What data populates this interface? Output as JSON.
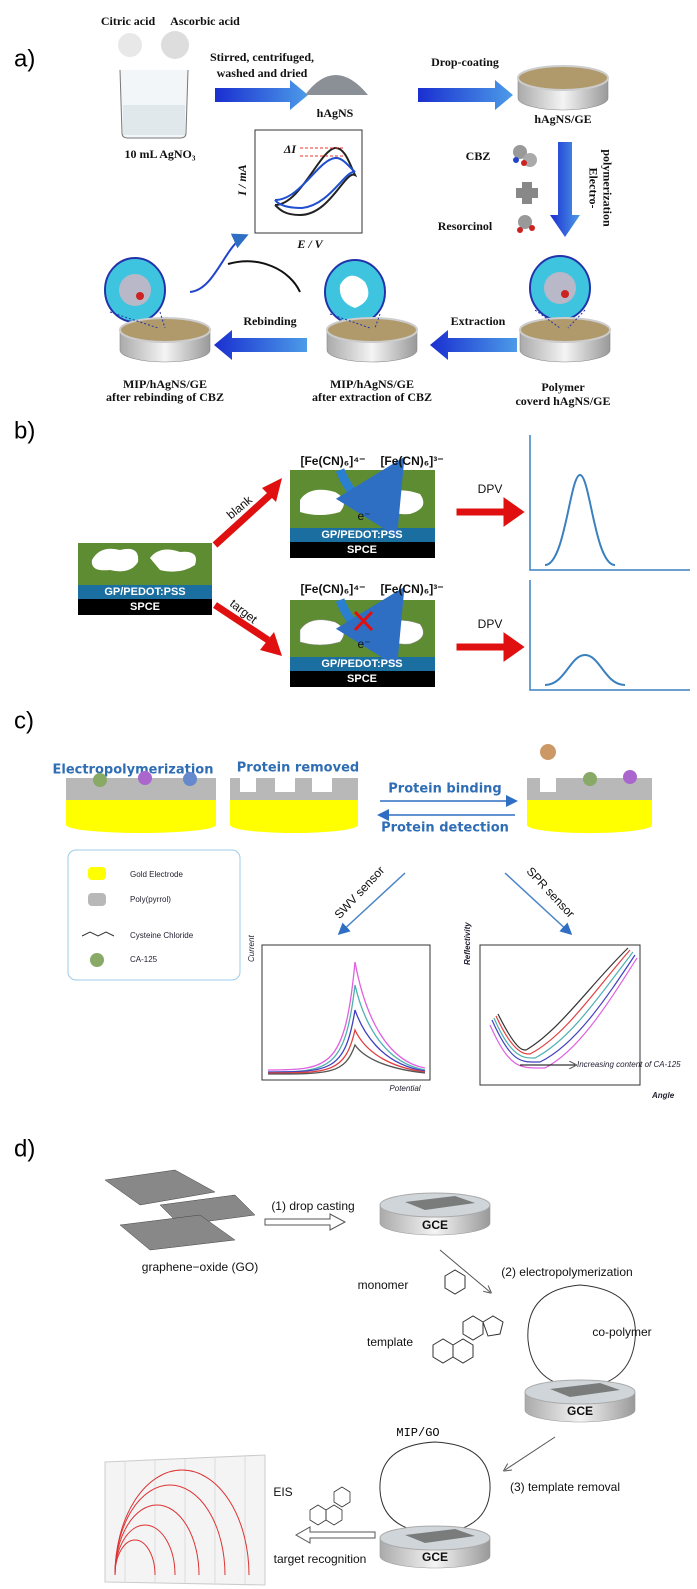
{
  "panel_a": {
    "label": "a)",
    "citric_acid": "Citric acid",
    "ascorbic_acid": "Ascorbic acid",
    "beaker": "10 mL  AgNO₃",
    "step1_line1": "Stirred, centrifuged,",
    "step1_line2": "washed and dried",
    "hagns": "hAgNS",
    "drop_coating": "Drop-coating",
    "hagns_ge": "hAgNS/GE",
    "cbz": "CBZ",
    "resorcinol": "Resorcinol",
    "electro_line1": "Electro-",
    "electro_line2": "polymerization",
    "delta_i": "ΔI",
    "y_axis": "I / mA",
    "x_axis": "E / V",
    "extraction": "Extraction",
    "rebinding": "Rebinding",
    "polymer_line1": "Polymer",
    "polymer_line2": "coverd hAgNS/GE",
    "extracted_line1": "MIP/hAgNS/GE",
    "extracted_line2": "after extraction of CBZ",
    "rebound_line1": "MIP/hAgNS/GE",
    "rebound_line2": "after rebinding of CBZ"
  },
  "panel_b": {
    "label": "b)",
    "blank": "blank",
    "target": "target",
    "ferro": "[Fe(CN)₆]⁴⁻",
    "ferri": "[Fe(CN)₆]³⁻",
    "electron": "e⁻",
    "layer": "GP/PEDOT:PSS",
    "substrate": "SPCE",
    "method": "DPV"
  },
  "panel_c": {
    "label": "c)",
    "electropolymerization": "Electropolymerization",
    "protein_removed": "Protein removed",
    "protein_binding": "Protein binding",
    "protein_detection": "Protein detection",
    "legend": [
      "Gold Electrode",
      "Poly(pyrrol)",
      "Cysteine Chloride",
      "CA-125"
    ],
    "swv": "SWV sensor",
    "spr": "SPR sensor",
    "current": "Current",
    "potential": "Potential",
    "reflectivity": "Reflectivity",
    "angle": "Angle",
    "increasing": "Increasing content of CA-125"
  },
  "panel_d": {
    "label": "d)",
    "drop_casting": "(1) drop casting",
    "gce": "GCE",
    "go": "graphene−oxide (GO)",
    "monomer": "monomer",
    "electropolymerization": "(2) electropolymerization",
    "template": "template",
    "copolymer": "co-polymer",
    "mip_go": "MIP/GO",
    "template_removal": "(3) template  removal",
    "eis": "EIS",
    "target_recognition": "target recognition"
  }
}
